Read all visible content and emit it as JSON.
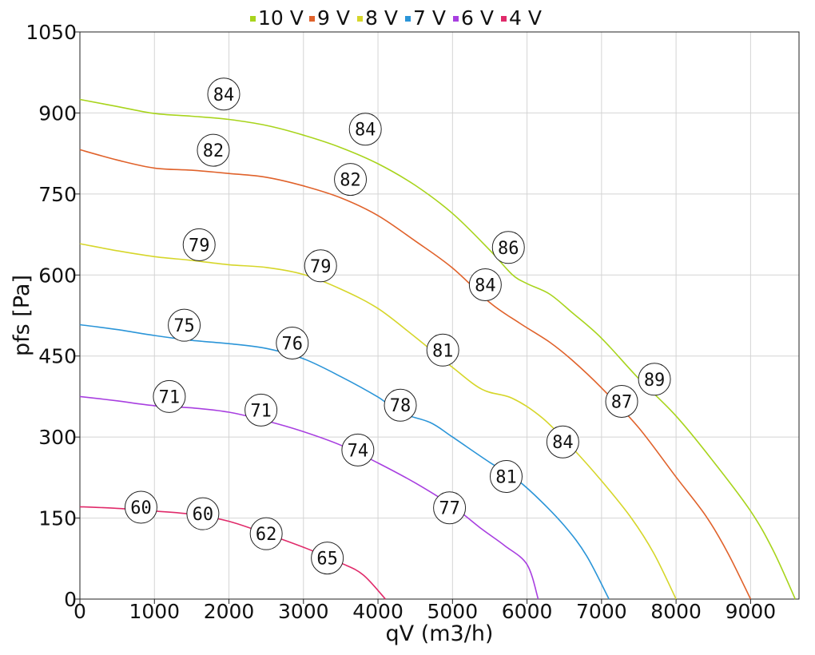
{
  "chart_data": {
    "type": "line",
    "xlabel": "qV (m3/h)",
    "ylabel": "pfs [Pa]",
    "xlim": [
      0,
      9650
    ],
    "ylim": [
      0,
      1050
    ],
    "x_ticks": [
      0,
      1000,
      2000,
      3000,
      4000,
      5000,
      6000,
      7000,
      8000,
      9000
    ],
    "y_ticks": [
      0,
      150,
      300,
      450,
      600,
      750,
      900,
      1050
    ],
    "grid": true,
    "legend_position": "top",
    "series": [
      {
        "name": "10 V",
        "color": "#a8d41c",
        "points": [
          [
            0,
            925
          ],
          [
            500,
            912
          ],
          [
            1000,
            899
          ],
          [
            1500,
            894
          ],
          [
            2000,
            888
          ],
          [
            2500,
            877
          ],
          [
            3000,
            859
          ],
          [
            3500,
            836
          ],
          [
            4000,
            806
          ],
          [
            4500,
            766
          ],
          [
            5000,
            714
          ],
          [
            5500,
            646
          ],
          [
            5800,
            601
          ],
          [
            6000,
            584
          ],
          [
            6300,
            565
          ],
          [
            6600,
            531
          ],
          [
            7000,
            483
          ],
          [
            7500,
            408
          ],
          [
            8000,
            339
          ],
          [
            8500,
            255
          ],
          [
            9000,
            163
          ],
          [
            9300,
            91
          ],
          [
            9600,
            0
          ]
        ]
      },
      {
        "name": "9 V",
        "color": "#e0622b",
        "points": [
          [
            0,
            832
          ],
          [
            500,
            813
          ],
          [
            1000,
            798
          ],
          [
            1500,
            794
          ],
          [
            2000,
            788
          ],
          [
            2500,
            781
          ],
          [
            3000,
            765
          ],
          [
            3500,
            743
          ],
          [
            4000,
            710
          ],
          [
            4500,
            663
          ],
          [
            5000,
            613
          ],
          [
            5500,
            549
          ],
          [
            5900,
            511
          ],
          [
            6300,
            476
          ],
          [
            6600,
            443
          ],
          [
            7000,
            391
          ],
          [
            7500,
            317
          ],
          [
            8000,
            226
          ],
          [
            8400,
            154
          ],
          [
            8700,
            84
          ],
          [
            9000,
            0
          ]
        ]
      },
      {
        "name": "8 V",
        "color": "#d6d62a",
        "points": [
          [
            0,
            658
          ],
          [
            500,
            645
          ],
          [
            1000,
            634
          ],
          [
            1500,
            627
          ],
          [
            2000,
            619
          ],
          [
            2500,
            614
          ],
          [
            3000,
            601
          ],
          [
            3500,
            574
          ],
          [
            4000,
            538
          ],
          [
            4500,
            485
          ],
          [
            5000,
            429
          ],
          [
            5400,
            388
          ],
          [
            5800,
            372
          ],
          [
            6200,
            336
          ],
          [
            6600,
            281
          ],
          [
            7000,
            219
          ],
          [
            7400,
            150
          ],
          [
            7700,
            85
          ],
          [
            8000,
            0
          ]
        ]
      },
      {
        "name": "7 V",
        "color": "#2b95d8",
        "points": [
          [
            0,
            508
          ],
          [
            500,
            499
          ],
          [
            1000,
            488
          ],
          [
            1500,
            479
          ],
          [
            2000,
            473
          ],
          [
            2500,
            464
          ],
          [
            3000,
            445
          ],
          [
            3500,
            412
          ],
          [
            4000,
            374
          ],
          [
            4300,
            345
          ],
          [
            4700,
            327
          ],
          [
            5000,
            300
          ],
          [
            5500,
            253
          ],
          [
            5800,
            228
          ],
          [
            6100,
            193
          ],
          [
            6500,
            136
          ],
          [
            6800,
            80
          ],
          [
            7100,
            0
          ]
        ]
      },
      {
        "name": "6 V",
        "color": "#a83fe0",
        "points": [
          [
            0,
            375
          ],
          [
            500,
            367
          ],
          [
            1000,
            358
          ],
          [
            1500,
            354
          ],
          [
            2000,
            346
          ],
          [
            2500,
            330
          ],
          [
            3000,
            310
          ],
          [
            3500,
            285
          ],
          [
            4000,
            252
          ],
          [
            4500,
            215
          ],
          [
            5000,
            172
          ],
          [
            5400,
            129
          ],
          [
            5700,
            99
          ],
          [
            6000,
            64
          ],
          [
            6150,
            0
          ]
        ]
      },
      {
        "name": "4 V",
        "color": "#e02a6a",
        "points": [
          [
            0,
            171
          ],
          [
            500,
            168
          ],
          [
            1000,
            163
          ],
          [
            1500,
            157
          ],
          [
            2000,
            144
          ],
          [
            2500,
            121
          ],
          [
            3000,
            96
          ],
          [
            3500,
            67
          ],
          [
            3800,
            45
          ],
          [
            4100,
            0
          ]
        ]
      }
    ],
    "annotations": [
      {
        "x": 1930,
        "y": 935,
        "text": "84"
      },
      {
        "x": 3830,
        "y": 870,
        "text": "84"
      },
      {
        "x": 5750,
        "y": 651,
        "text": "86"
      },
      {
        "x": 7710,
        "y": 407,
        "text": "89"
      },
      {
        "x": 1790,
        "y": 831,
        "text": "82"
      },
      {
        "x": 3630,
        "y": 777,
        "text": "82"
      },
      {
        "x": 5440,
        "y": 582,
        "text": "84"
      },
      {
        "x": 7270,
        "y": 366,
        "text": "87"
      },
      {
        "x": 1600,
        "y": 656,
        "text": "79"
      },
      {
        "x": 3230,
        "y": 617,
        "text": "79"
      },
      {
        "x": 4870,
        "y": 461,
        "text": "81"
      },
      {
        "x": 6480,
        "y": 291,
        "text": "84"
      },
      {
        "x": 1400,
        "y": 507,
        "text": "75"
      },
      {
        "x": 2850,
        "y": 474,
        "text": "76"
      },
      {
        "x": 4300,
        "y": 359,
        "text": "78"
      },
      {
        "x": 5720,
        "y": 227,
        "text": "81"
      },
      {
        "x": 1200,
        "y": 375,
        "text": "71"
      },
      {
        "x": 2430,
        "y": 350,
        "text": "71"
      },
      {
        "x": 3730,
        "y": 276,
        "text": "74"
      },
      {
        "x": 4960,
        "y": 169,
        "text": "77"
      },
      {
        "x": 820,
        "y": 170,
        "text": "60"
      },
      {
        "x": 1650,
        "y": 158,
        "text": "60"
      },
      {
        "x": 2500,
        "y": 121,
        "text": "62"
      },
      {
        "x": 3320,
        "y": 76,
        "text": "65"
      }
    ]
  }
}
